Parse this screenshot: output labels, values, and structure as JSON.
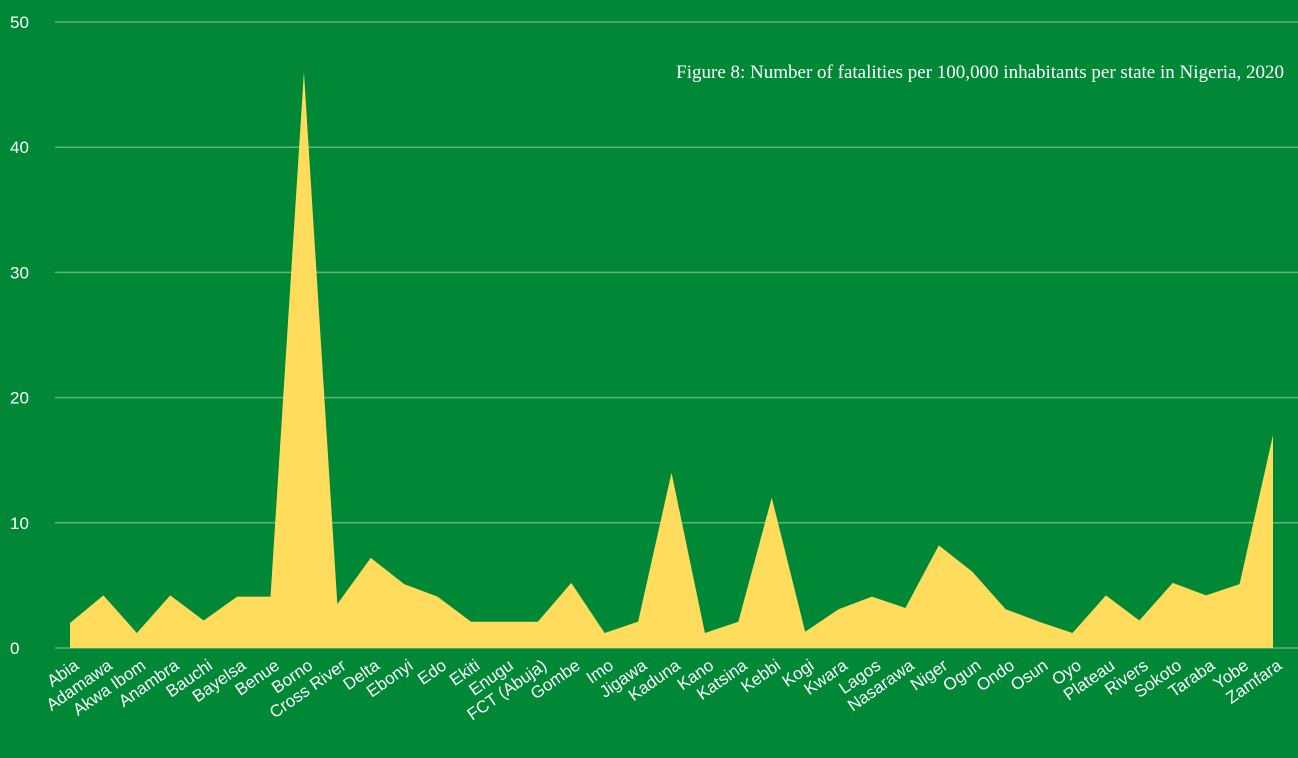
{
  "colors": {
    "background": "#008837",
    "area_fill": "#FFDC5C",
    "grid": "#5fb374",
    "text": "#ffffff"
  },
  "chart_data": {
    "type": "area",
    "title": "Figure 8: Number of fatalities per 100,000 inhabitants per state in Nigeria, 2020",
    "xlabel": "",
    "ylabel": "",
    "ylim": [
      0,
      50
    ],
    "yticks": [
      0,
      10,
      20,
      30,
      40,
      50
    ],
    "grid": true,
    "legend": "none",
    "categories": [
      "Abia",
      "Adamawa",
      "Akwa Ibom",
      "Anambra",
      "Bauchi",
      "Bayelsa",
      "Benue",
      "Borno",
      "Cross River",
      "Delta",
      "Ebonyi",
      "Edo",
      "Ekiti",
      "Enugu",
      "FCT (Abuja)",
      "Gombe",
      "Imo",
      "Jigawa",
      "Kaduna",
      "Kano",
      "Katsina",
      "Kebbi",
      "Kogi",
      "Kwara",
      "Lagos",
      "Nasarawa",
      "Niger",
      "Ogun",
      "Ondo",
      "Osun",
      "Oyo",
      "Plateau",
      "Rivers",
      "Sokoto",
      "Taraba",
      "Yobe",
      "Zamfara"
    ],
    "values": [
      2,
      4.2,
      1.2,
      4.2,
      2.2,
      4.1,
      4.1,
      46,
      3.5,
      7.2,
      5.1,
      4.1,
      2.1,
      2.1,
      2.1,
      5.2,
      1.2,
      2.1,
      14,
      1.2,
      2.1,
      12,
      1.3,
      3.1,
      4.1,
      3.2,
      8.2,
      6.1,
      3.1,
      2.1,
      1.2,
      4.2,
      2.2,
      5.2,
      4.2,
      5.1,
      17
    ]
  }
}
